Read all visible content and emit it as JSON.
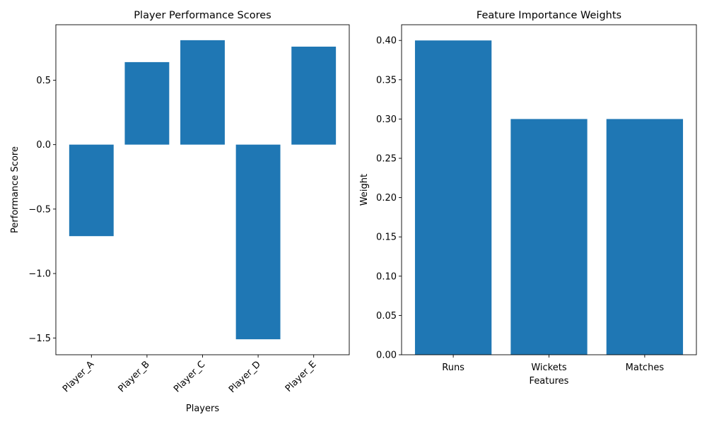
{
  "chart_data": [
    {
      "type": "bar",
      "title": "Player Performance Scores",
      "xlabel": "Players",
      "ylabel": "Performance Score",
      "categories": [
        "Player_A",
        "Player_B",
        "Player_C",
        "Player_D",
        "Player_E"
      ],
      "values": [
        -0.71,
        0.64,
        0.81,
        -1.51,
        0.76
      ],
      "ylim": [
        -1.63,
        0.93
      ],
      "yticks": [
        -1.5,
        -1.0,
        -0.5,
        0.0,
        0.5
      ],
      "ytick_labels": [
        "−1.5",
        "−1.0",
        "−0.5",
        "0.0",
        "0.5"
      ],
      "xtick_rotation": "45 degrees",
      "grid": false,
      "bar_color": "#1f77b4"
    },
    {
      "type": "bar",
      "title": "Feature Importance Weights",
      "xlabel": "Features",
      "ylabel": "Weight",
      "categories": [
        "Runs",
        "Wickets",
        "Matches"
      ],
      "values": [
        0.4,
        0.3,
        0.3
      ],
      "ylim": [
        0,
        0.42
      ],
      "yticks": [
        0.0,
        0.05,
        0.1,
        0.15,
        0.2,
        0.25,
        0.3,
        0.35,
        0.4
      ],
      "ytick_labels": [
        "0.00",
        "0.05",
        "0.10",
        "0.15",
        "0.20",
        "0.25",
        "0.30",
        "0.35",
        "0.40"
      ],
      "grid": false,
      "bar_color": "#1f77b4"
    }
  ]
}
